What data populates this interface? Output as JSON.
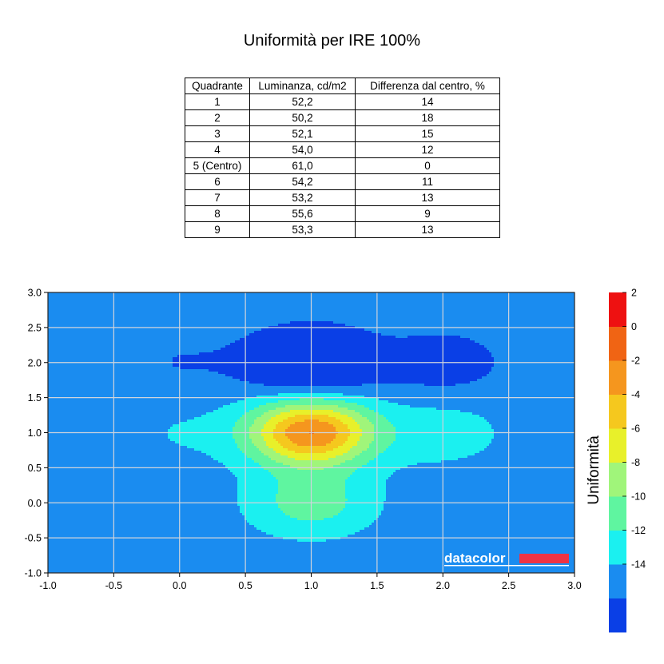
{
  "title": "Uniformità per IRE 100%",
  "table": {
    "headers": [
      "Quadrante",
      "Luminanza, cd/m2",
      "Differenza dal centro, %"
    ],
    "rows": [
      [
        "1",
        "52,2",
        "14"
      ],
      [
        "2",
        "50,2",
        "18"
      ],
      [
        "3",
        "52,1",
        "15"
      ],
      [
        "4",
        "54,0",
        "12"
      ],
      [
        "5 (Centro)",
        "61,0",
        "0"
      ],
      [
        "6",
        "54,2",
        "11"
      ],
      [
        "7",
        "53,2",
        "13"
      ],
      [
        "8",
        "55,6",
        "9"
      ],
      [
        "9",
        "53,3",
        "13"
      ]
    ]
  },
  "chart_data": {
    "type": "heatmap",
    "subtype": "filled-contour",
    "xlim": [
      -1.0,
      3.0
    ],
    "ylim": [
      -1.0,
      3.0
    ],
    "x_ticks": [
      "-1.0",
      "-0.5",
      "0.0",
      "0.5",
      "1.0",
      "1.5",
      "2.0",
      "2.5",
      "3.0"
    ],
    "y_ticks": [
      "-1.0",
      "-0.5",
      "0.0",
      "0.5",
      "1.0",
      "1.5",
      "2.0",
      "2.5",
      "3.0"
    ],
    "grid": true,
    "quadrant_values": {
      "x": [
        0,
        1,
        2
      ],
      "y": [
        0,
        1,
        2
      ],
      "note_order": "rows top (y=2) to bottom (y=0)",
      "z": [
        [
          -14,
          -18,
          -15
        ],
        [
          -12,
          0,
          -11
        ],
        [
          -13,
          -9,
          -13
        ]
      ]
    },
    "colorbar": {
      "label": "Uniformità",
      "levels": [
        -16,
        -14,
        -12,
        -10,
        -8,
        -6,
        -4,
        -2,
        0,
        2
      ],
      "tick_labels": [
        "2",
        "0",
        "-2",
        "-4",
        "-6",
        "-8",
        "-10",
        "-12",
        "-14"
      ],
      "colors": [
        "#0a3fe6",
        "#1a8cf0",
        "#1bf0f0",
        "#5ff5a0",
        "#a0f57a",
        "#e8f02a",
        "#f5c81e",
        "#f5961e",
        "#f06414",
        "#ee1111"
      ],
      "palette_note": "colors listed from lowest level band to highest"
    },
    "watermark": "datacolor",
    "brand_color": "#ee3344"
  }
}
